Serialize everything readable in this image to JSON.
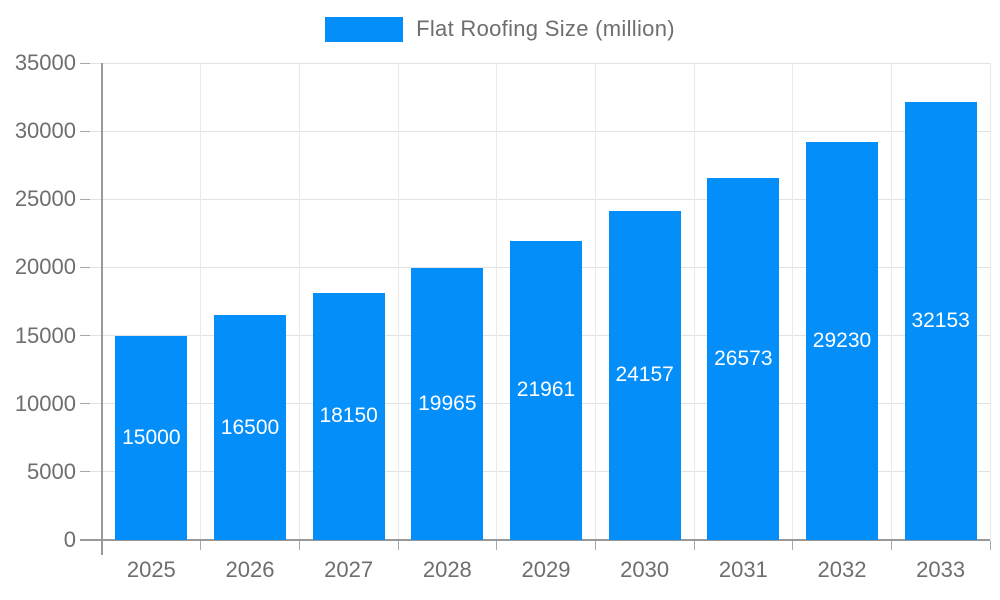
{
  "legend": {
    "label": "Flat Roofing Size (million)"
  },
  "chart_data": {
    "type": "bar",
    "title": "",
    "categories": [
      "2025",
      "2026",
      "2027",
      "2028",
      "2029",
      "2030",
      "2031",
      "2032",
      "2033"
    ],
    "series": [
      {
        "name": "Flat Roofing Size (million)",
        "values": [
          15000,
          16500,
          18150,
          19965,
          21961,
          24157,
          26573,
          29230,
          32153
        ]
      }
    ],
    "bar_labels": [
      "15000",
      "16500",
      "18150",
      "19965",
      "21961",
      "24157",
      "26573",
      "29230",
      "32153"
    ],
    "xlabel": "",
    "ylabel": "",
    "ylim": [
      0,
      35000
    ],
    "ytick_step": 5000,
    "ytick_labels": [
      "0",
      "5000",
      "10000",
      "15000",
      "20000",
      "25000",
      "30000",
      "35000"
    ],
    "grid": true,
    "legend_position": "top-center",
    "bar_color": "#038EFA",
    "bar_label_color": "#FFFFFF",
    "axis_text_color": "#6E6E6E",
    "axis_line_color": "#999999",
    "gridline_color": "#E2E2E2"
  }
}
